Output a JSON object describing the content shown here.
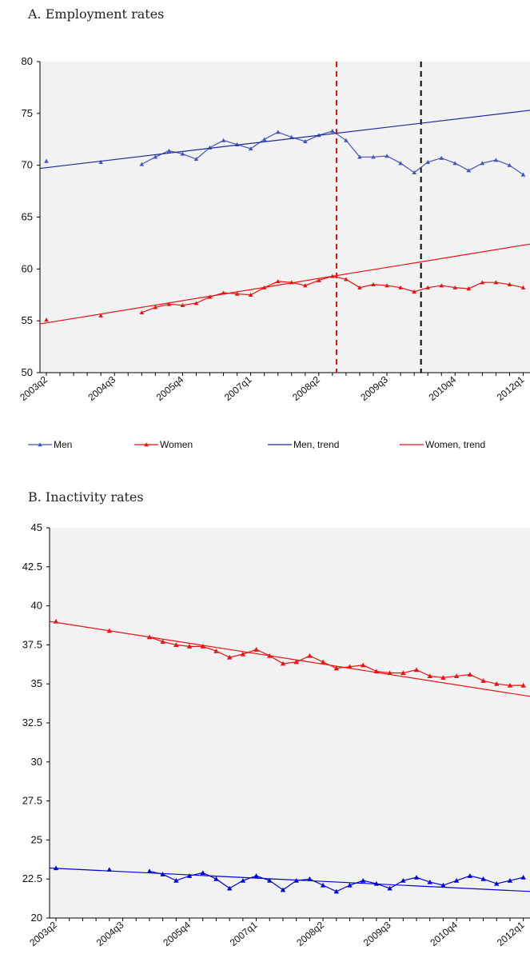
{
  "colors": {
    "men": "#4455bb",
    "women": "#ee1111",
    "men_trend": "#1a2a9a",
    "women_trend": "#ee1111",
    "plot_bg": "#f2f2f2",
    "vline_red": "#ee1111",
    "vline_black": "#000000",
    "men_b": "#0000dd"
  },
  "chart_data": [
    {
      "type": "line",
      "title": "A. Employment rates",
      "ylim": [
        50,
        80
      ],
      "yticks": [
        50,
        55,
        60,
        65,
        70,
        75,
        80
      ],
      "xtick_labels": [
        "2003q2",
        "2004q3",
        "2005q4",
        "2007q1",
        "2008q2",
        "2009q3",
        "2010q4",
        "2012q1"
      ],
      "n_quarters": 36,
      "vertical_lines": [
        {
          "x": 21.3,
          "style": "dashed",
          "color": "red"
        },
        {
          "x": 27.5,
          "style": "dashed",
          "color": "black"
        }
      ],
      "legend": {
        "placement": "bottom",
        "entries": [
          "Men",
          "Women",
          "Men, trend",
          "Women, trend"
        ]
      },
      "series": [
        {
          "name": "Men",
          "x": [
            0,
            4,
            7,
            8,
            9,
            10,
            11,
            12,
            13,
            14,
            15,
            16,
            17,
            18,
            19,
            20,
            21,
            22,
            23,
            24,
            25,
            26,
            27,
            28,
            29,
            30,
            31,
            32,
            33,
            34,
            35
          ],
          "values": [
            70.4,
            70.3,
            70.1,
            70.8,
            71.4,
            71.1,
            70.6,
            71.7,
            72.4,
            72.0,
            71.6,
            72.5,
            73.2,
            72.7,
            72.3,
            72.9,
            73.3,
            72.4,
            70.8,
            70.8,
            70.9,
            70.2,
            69.3,
            70.3,
            70.7,
            70.2,
            69.5,
            70.2,
            70.5,
            70.0,
            69.1
          ]
        },
        {
          "name": "Women",
          "x": [
            0,
            4,
            7,
            8,
            9,
            10,
            11,
            12,
            13,
            14,
            15,
            16,
            17,
            18,
            19,
            20,
            21,
            22,
            23,
            24,
            25,
            26,
            27,
            28,
            29,
            30,
            31,
            32,
            33,
            34,
            35
          ],
          "values": [
            55.1,
            55.5,
            55.8,
            56.3,
            56.6,
            56.5,
            56.7,
            57.3,
            57.7,
            57.6,
            57.5,
            58.2,
            58.8,
            58.7,
            58.4,
            58.9,
            59.3,
            59.0,
            58.2,
            58.5,
            58.4,
            58.2,
            57.8,
            58.2,
            58.4,
            58.2,
            58.1,
            58.7,
            58.7,
            58.5,
            58.2
          ]
        },
        {
          "name": "Men, trend",
          "trend": true,
          "x": [
            0,
            35.5
          ],
          "values": [
            69.7,
            75.3
          ]
        },
        {
          "name": "Women, trend",
          "trend": true,
          "x": [
            0,
            35.5
          ],
          "values": [
            54.7,
            62.4
          ]
        }
      ]
    },
    {
      "type": "line",
      "title": "B. Inactivity rates",
      "ylim": [
        20,
        45
      ],
      "yticks": [
        20,
        22.5,
        25,
        27.5,
        30,
        32.5,
        35,
        37.5,
        40,
        42.5,
        45
      ],
      "xtick_labels": [
        "2003q2",
        "2004q3",
        "2005q4",
        "2007q1",
        "2008q2",
        "2009q3",
        "2010q4",
        "2012q1"
      ],
      "n_quarters": 36,
      "series": [
        {
          "name": "",
          "x": [
            0,
            4,
            7,
            8,
            9,
            10,
            11,
            12,
            13,
            14,
            15,
            16,
            17,
            18,
            19,
            20,
            21,
            22,
            23,
            24,
            25,
            26,
            27,
            28,
            29,
            30,
            31,
            32,
            33,
            34,
            35
          ],
          "values": [
            39.0,
            38.4,
            38.0,
            37.7,
            37.5,
            37.4,
            37.4,
            37.1,
            36.7,
            36.9,
            37.2,
            36.8,
            36.3,
            36.4,
            36.8,
            36.4,
            36.0,
            36.1,
            36.2,
            35.8,
            35.7,
            35.7,
            35.9,
            35.5,
            35.4,
            35.5,
            35.6,
            35.2,
            35.0,
            34.9,
            34.9
          ]
        },
        {
          "name": "",
          "x": [
            0,
            4,
            7,
            8,
            9,
            10,
            11,
            12,
            13,
            14,
            15,
            16,
            17,
            18,
            19,
            20,
            21,
            22,
            23,
            24,
            25,
            26,
            27,
            28,
            29,
            30,
            31,
            32,
            33,
            34,
            35
          ],
          "values": [
            23.2,
            23.1,
            23.0,
            22.8,
            22.4,
            22.7,
            22.9,
            22.5,
            21.9,
            22.4,
            22.7,
            22.4,
            21.8,
            22.4,
            22.5,
            22.1,
            21.7,
            22.1,
            22.4,
            22.2,
            21.9,
            22.4,
            22.6,
            22.3,
            22.1,
            22.4,
            22.7,
            22.5,
            22.2,
            22.4,
            22.6
          ]
        },
        {
          "name": "",
          "trend": true,
          "x": [
            0,
            35.5
          ],
          "values": [
            39.0,
            34.2
          ]
        },
        {
          "name": "",
          "trend": true,
          "x": [
            0,
            35.5
          ],
          "values": [
            23.2,
            21.7
          ]
        }
      ]
    }
  ]
}
